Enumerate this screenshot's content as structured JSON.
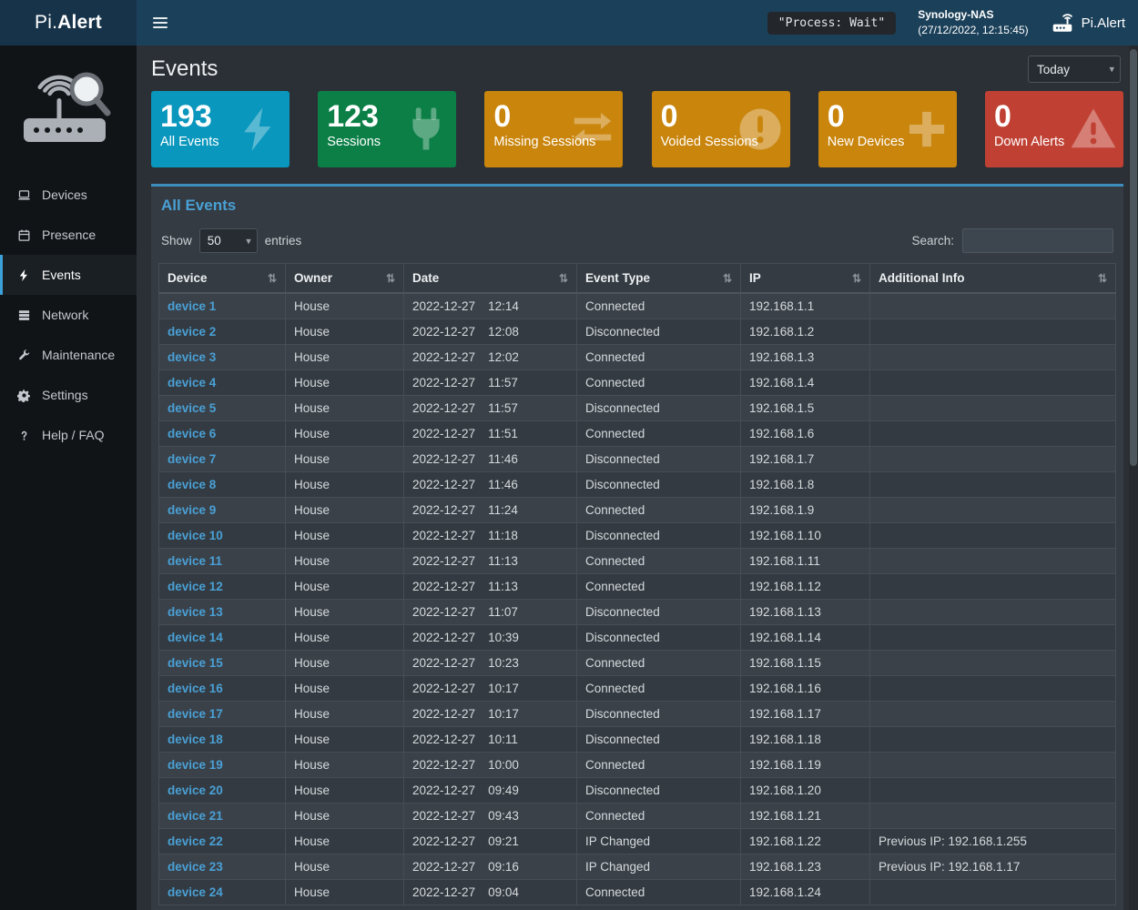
{
  "theme": {
    "accent": "#3c8dbc",
    "link": "#4aa0d5",
    "navbar": "#1b4059",
    "sidebar": "#111417"
  },
  "navbar": {
    "brand_prefix": "Pi.",
    "brand_bold": "Alert",
    "process_status": "\"Process: Wait\"",
    "device_name": "Synology-NAS",
    "device_time": "(27/12/2022, 12:15:45)",
    "app_name": "Pi.Alert"
  },
  "sidebar": {
    "items": [
      {
        "label": "Devices",
        "icon": "laptop-icon",
        "active": false
      },
      {
        "label": "Presence",
        "icon": "calendar-icon",
        "active": false
      },
      {
        "label": "Events",
        "icon": "bolt-icon",
        "active": true
      },
      {
        "label": "Network",
        "icon": "network-icon",
        "active": false
      },
      {
        "label": "Maintenance",
        "icon": "wrench-icon",
        "active": false
      },
      {
        "label": "Settings",
        "icon": "gear-icon",
        "active": false
      },
      {
        "label": "Help / FAQ",
        "icon": "question-icon",
        "active": false
      }
    ]
  },
  "page": {
    "title": "Events",
    "period": "Today"
  },
  "cards": [
    {
      "value": "193",
      "label": "All Events",
      "color": "#0a97bd",
      "icon": "bolt-icon"
    },
    {
      "value": "123",
      "label": "Sessions",
      "color": "#0c7f47",
      "icon": "plug-icon"
    },
    {
      "value": "0",
      "label": "Missing Sessions",
      "color": "#c9850c",
      "icon": "exchange-icon"
    },
    {
      "value": "0",
      "label": "Voided Sessions",
      "color": "#c9850c",
      "icon": "exclamation-icon"
    },
    {
      "value": "0",
      "label": "New Devices",
      "color": "#c9850c",
      "icon": "plus-icon"
    },
    {
      "value": "0",
      "label": "Down Alerts",
      "color": "#c04134",
      "icon": "warning-icon"
    }
  ],
  "panel": {
    "title": "All Events",
    "show_label": "Show",
    "entries_label": "entries",
    "page_size": "50",
    "search_label": "Search:",
    "search_value": "",
    "table": {
      "sort_glyph": "⇅",
      "headers": [
        {
          "label": "Device"
        },
        {
          "label": "Owner"
        },
        {
          "label": "Date"
        },
        {
          "label": "Event Type"
        },
        {
          "label": "IP"
        },
        {
          "label": "Additional Info"
        }
      ],
      "rows": [
        {
          "device": "device 1",
          "owner": "House",
          "date": "2022-12-27",
          "time": "12:14",
          "event_type": "Connected",
          "ip": "192.168.1.1",
          "info": ""
        },
        {
          "device": "device 2",
          "owner": "House",
          "date": "2022-12-27",
          "time": "12:08",
          "event_type": "Disconnected",
          "ip": "192.168.1.2",
          "info": ""
        },
        {
          "device": "device 3",
          "owner": "House",
          "date": "2022-12-27",
          "time": "12:02",
          "event_type": "Connected",
          "ip": "192.168.1.3",
          "info": ""
        },
        {
          "device": "device 4",
          "owner": "House",
          "date": "2022-12-27",
          "time": "11:57",
          "event_type": "Connected",
          "ip": "192.168.1.4",
          "info": ""
        },
        {
          "device": "device 5",
          "owner": "House",
          "date": "2022-12-27",
          "time": "11:57",
          "event_type": "Disconnected",
          "ip": "192.168.1.5",
          "info": ""
        },
        {
          "device": "device 6",
          "owner": "House",
          "date": "2022-12-27",
          "time": "11:51",
          "event_type": "Connected",
          "ip": "192.168.1.6",
          "info": ""
        },
        {
          "device": "device 7",
          "owner": "House",
          "date": "2022-12-27",
          "time": "11:46",
          "event_type": "Disconnected",
          "ip": "192.168.1.7",
          "info": ""
        },
        {
          "device": "device 8",
          "owner": "House",
          "date": "2022-12-27",
          "time": "11:46",
          "event_type": "Disconnected",
          "ip": "192.168.1.8",
          "info": ""
        },
        {
          "device": "device 9",
          "owner": "House",
          "date": "2022-12-27",
          "time": "11:24",
          "event_type": "Connected",
          "ip": "192.168.1.9",
          "info": ""
        },
        {
          "device": "device 10",
          "owner": "House",
          "date": "2022-12-27",
          "time": "11:18",
          "event_type": "Disconnected",
          "ip": "192.168.1.10",
          "info": ""
        },
        {
          "device": "device 11",
          "owner": "House",
          "date": "2022-12-27",
          "time": "11:13",
          "event_type": "Connected",
          "ip": "192.168.1.11",
          "info": ""
        },
        {
          "device": "device 12",
          "owner": "House",
          "date": "2022-12-27",
          "time": "11:13",
          "event_type": "Connected",
          "ip": "192.168.1.12",
          "info": ""
        },
        {
          "device": "device 13",
          "owner": "House",
          "date": "2022-12-27",
          "time": "11:07",
          "event_type": "Disconnected",
          "ip": "192.168.1.13",
          "info": ""
        },
        {
          "device": "device 14",
          "owner": "House",
          "date": "2022-12-27",
          "time": "10:39",
          "event_type": "Disconnected",
          "ip": "192.168.1.14",
          "info": ""
        },
        {
          "device": "device 15",
          "owner": "House",
          "date": "2022-12-27",
          "time": "10:23",
          "event_type": "Connected",
          "ip": "192.168.1.15",
          "info": ""
        },
        {
          "device": "device 16",
          "owner": "House",
          "date": "2022-12-27",
          "time": "10:17",
          "event_type": "Connected",
          "ip": "192.168.1.16",
          "info": ""
        },
        {
          "device": "device 17",
          "owner": "House",
          "date": "2022-12-27",
          "time": "10:17",
          "event_type": "Disconnected",
          "ip": "192.168.1.17",
          "info": ""
        },
        {
          "device": "device 18",
          "owner": "House",
          "date": "2022-12-27",
          "time": "10:11",
          "event_type": "Disconnected",
          "ip": "192.168.1.18",
          "info": ""
        },
        {
          "device": "device 19",
          "owner": "House",
          "date": "2022-12-27",
          "time": "10:00",
          "event_type": "Connected",
          "ip": "192.168.1.19",
          "info": ""
        },
        {
          "device": "device 20",
          "owner": "House",
          "date": "2022-12-27",
          "time": "09:49",
          "event_type": "Disconnected",
          "ip": "192.168.1.20",
          "info": ""
        },
        {
          "device": "device 21",
          "owner": "House",
          "date": "2022-12-27",
          "time": "09:43",
          "event_type": "Connected",
          "ip": "192.168.1.21",
          "info": ""
        },
        {
          "device": "device 22",
          "owner": "House",
          "date": "2022-12-27",
          "time": "09:21",
          "event_type": "IP Changed",
          "ip": "192.168.1.22",
          "info": "Previous IP: 192.168.1.255"
        },
        {
          "device": "device 23",
          "owner": "House",
          "date": "2022-12-27",
          "time": "09:16",
          "event_type": "IP Changed",
          "ip": "192.168.1.23",
          "info": "Previous IP: 192.168.1.17"
        },
        {
          "device": "device 24",
          "owner": "House",
          "date": "2022-12-27",
          "time": "09:04",
          "event_type": "Connected",
          "ip": "192.168.1.24",
          "info": ""
        }
      ]
    }
  }
}
